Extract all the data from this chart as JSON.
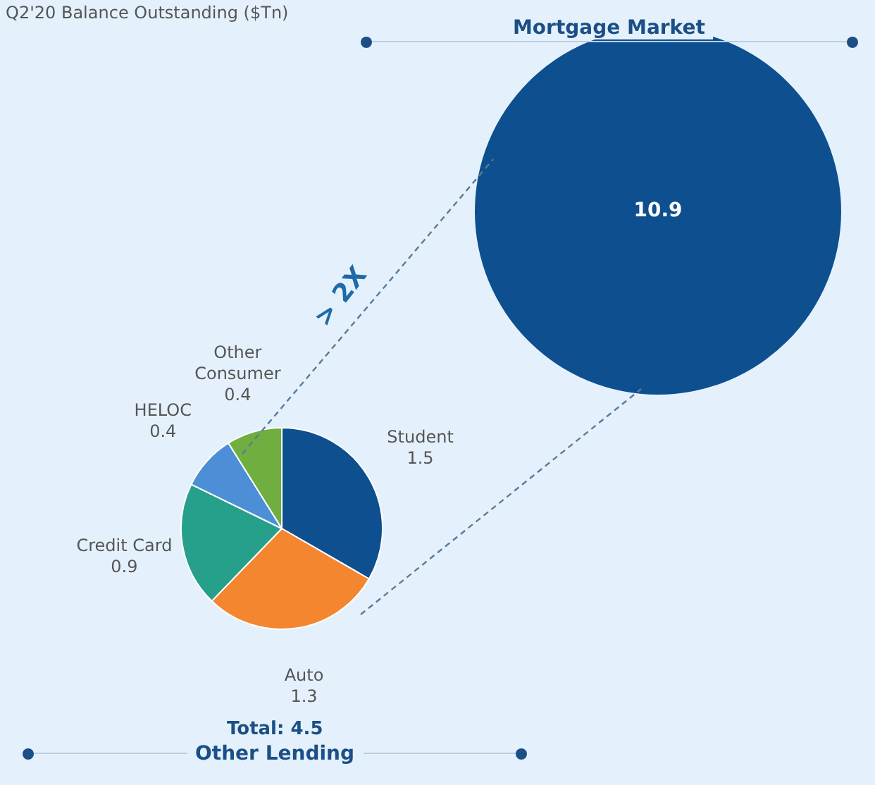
{
  "chart_data": [
    {
      "type": "pie",
      "title": "Other Lending",
      "categories": [
        "Student",
        "Auto",
        "Credit Card",
        "HELOC",
        "Other Consumer"
      ],
      "values": [
        1.5,
        1.3,
        0.9,
        0.4,
        0.4
      ],
      "colors": [
        "#0e4f8f",
        "#f3862e",
        "#27a08b",
        "#4c8fd6",
        "#6fae3f"
      ],
      "data_labels": true,
      "legend": false,
      "annotations": [
        "Q2'20 Balance Outstanding ($Tn)",
        "> 2X",
        "Total: 4.5"
      ]
    },
    {
      "type": "pie",
      "title": "Mortgage Market",
      "categories": [
        null
      ],
      "values": [
        10.9
      ],
      "colors": [
        "#0e4f8f"
      ],
      "data_labels": true,
      "legend": false
    }
  ]
}
